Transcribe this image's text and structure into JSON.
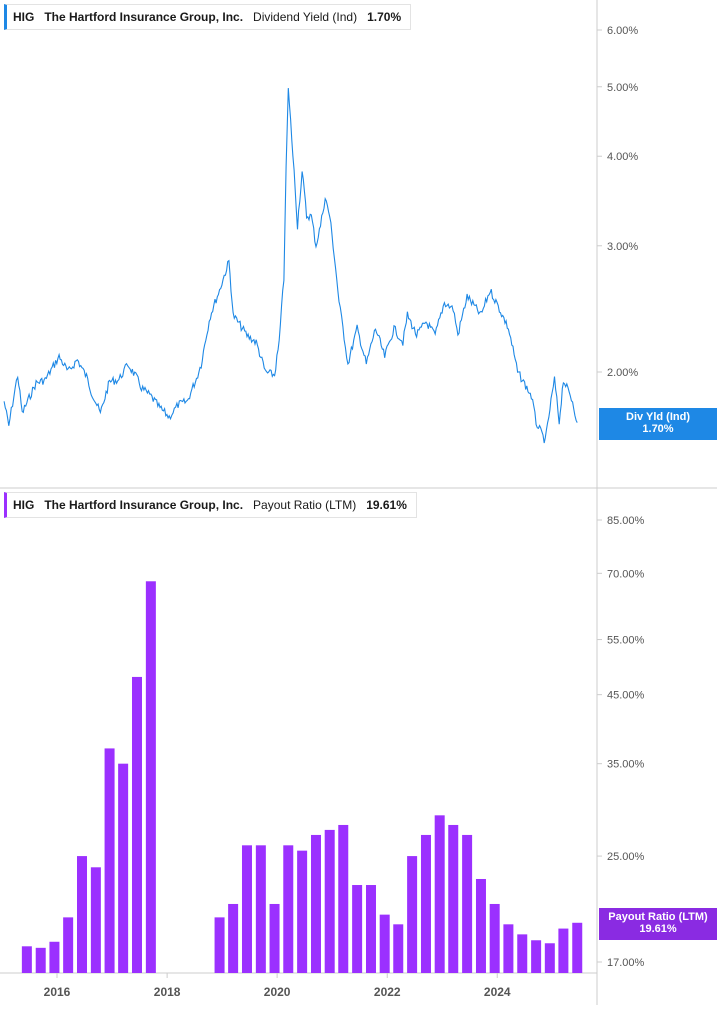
{
  "colors": {
    "yield_line": "#1e88e5",
    "payout_bar": "#9b30ff",
    "yield_badge": "#1e88e5",
    "payout_badge": "#8a2be2",
    "axis_text": "#555555",
    "divider": "#cccccc"
  },
  "top_legend": {
    "ticker": "HIG",
    "company": "The Hartford Insurance Group, Inc.",
    "metric": "Dividend Yield (Ind)",
    "value": "1.70%"
  },
  "bottom_legend": {
    "ticker": "HIG",
    "company": "The Hartford Insurance Group, Inc.",
    "metric": "Payout Ratio (LTM)",
    "value": "19.61%"
  },
  "top_badge": {
    "label": "Div Yld (Ind)",
    "value": "1.70%"
  },
  "bottom_badge": {
    "label": "Payout Ratio (LTM)",
    "value": "19.61%"
  },
  "chart_data": [
    {
      "type": "line",
      "series": [
        {
          "name": "Dividend Yield (Ind)",
          "x": [
            "2015-01",
            "2015-02",
            "2015-04",
            "2015-05",
            "2015-08",
            "2015-10",
            "2016-01",
            "2016-03",
            "2016-05",
            "2016-07",
            "2016-08",
            "2016-10",
            "2016-12",
            "2017-02",
            "2017-04",
            "2017-06",
            "2017-07",
            "2017-09",
            "2017-11",
            "2018-01",
            "2018-03",
            "2018-05",
            "2018-07",
            "2018-08",
            "2018-10",
            "2018-12",
            "2019-02",
            "2019-03",
            "2019-06",
            "2019-08",
            "2019-10",
            "2019-12",
            "2020-01",
            "2020-02",
            "2020-03",
            "2020-04",
            "2020-05",
            "2020-06",
            "2020-07",
            "2020-08",
            "2020-09",
            "2020-10",
            "2020-11",
            "2020-12",
            "2021-01",
            "2021-02",
            "2021-04",
            "2021-06",
            "2021-08",
            "2021-10",
            "2021-12",
            "2022-02",
            "2022-04",
            "2022-05",
            "2022-07",
            "2022-09",
            "2022-11",
            "2023-01",
            "2023-03",
            "2023-04",
            "2023-06",
            "2023-07",
            "2023-09",
            "2023-11",
            "2024-01",
            "2024-03",
            "2024-05",
            "2024-06",
            "2024-08",
            "2024-09",
            "2024-11",
            "2025-01",
            "2025-02",
            "2025-03",
            "2025-05",
            "2025-06"
          ],
          "values": [
            1.82,
            1.68,
            1.98,
            1.75,
            1.93,
            1.95,
            2.1,
            2.0,
            2.08,
            1.97,
            1.88,
            1.75,
            1.94,
            1.95,
            2.05,
            1.96,
            1.9,
            1.85,
            1.78,
            1.73,
            1.8,
            1.82,
            1.96,
            2.05,
            2.4,
            2.6,
            2.85,
            2.4,
            2.25,
            2.2,
            2.0,
            1.98,
            2.2,
            2.7,
            4.95,
            4.0,
            3.2,
            3.8,
            3.3,
            3.3,
            3.0,
            3.2,
            3.5,
            3.3,
            2.9,
            2.5,
            2.05,
            2.3,
            2.05,
            2.3,
            2.1,
            2.3,
            2.2,
            2.4,
            2.25,
            2.35,
            2.25,
            2.5,
            2.45,
            2.25,
            2.55,
            2.5,
            2.4,
            2.6,
            2.45,
            2.3,
            2.0,
            1.95,
            1.85,
            1.7,
            1.6,
            1.95,
            1.7,
            1.95,
            1.82,
            1.7
          ]
        }
      ],
      "y_ticks": [
        "6.00%",
        "5.00%",
        "4.00%",
        "3.00%",
        "2.00%"
      ],
      "y_scale": "log"
    },
    {
      "type": "bar",
      "series": [
        {
          "name": "Payout Ratio (LTM)",
          "x": [
            "2015-06",
            "2015-09",
            "2015-12",
            "2016-03",
            "2016-06",
            "2016-09",
            "2016-12",
            "2017-03",
            "2017-06",
            "2017-09",
            "2017-12",
            "2018-03",
            "2018-06",
            "2018-09",
            "2018-12",
            "2019-03",
            "2019-06",
            "2019-09",
            "2019-12",
            "2020-03",
            "2020-06",
            "2020-09",
            "2020-12",
            "2021-03",
            "2021-06",
            "2021-09",
            "2021-12",
            "2022-03",
            "2022-06",
            "2022-09",
            "2022-12",
            "2023-03",
            "2023-06",
            "2023-09",
            "2023-12",
            "2024-03",
            "2024-06",
            "2024-09",
            "2024-12",
            "2025-03",
            "2025-06"
          ],
          "values": [
            18.0,
            17.9,
            18.3,
            20.0,
            25.0,
            24.0,
            37.0,
            35.0,
            48.0,
            68.0,
            null,
            null,
            null,
            null,
            20.0,
            21.0,
            26.0,
            26.0,
            21.0,
            26.0,
            25.5,
            27.0,
            27.5,
            28.0,
            22.5,
            22.5,
            20.2,
            19.5,
            25.0,
            27.0,
            29.0,
            28.0,
            27.0,
            23.0,
            21.0,
            19.5,
            18.8,
            18.4,
            18.2,
            19.2,
            19.61
          ]
        }
      ],
      "y_ticks": [
        "85.00%",
        "70.00%",
        "55.00%",
        "45.00%",
        "35.00%",
        "25.00%",
        "17.00%"
      ],
      "y_scale": "log",
      "x_ticks": [
        "2016",
        "2018",
        "2020",
        "2022",
        "2024"
      ]
    }
  ]
}
